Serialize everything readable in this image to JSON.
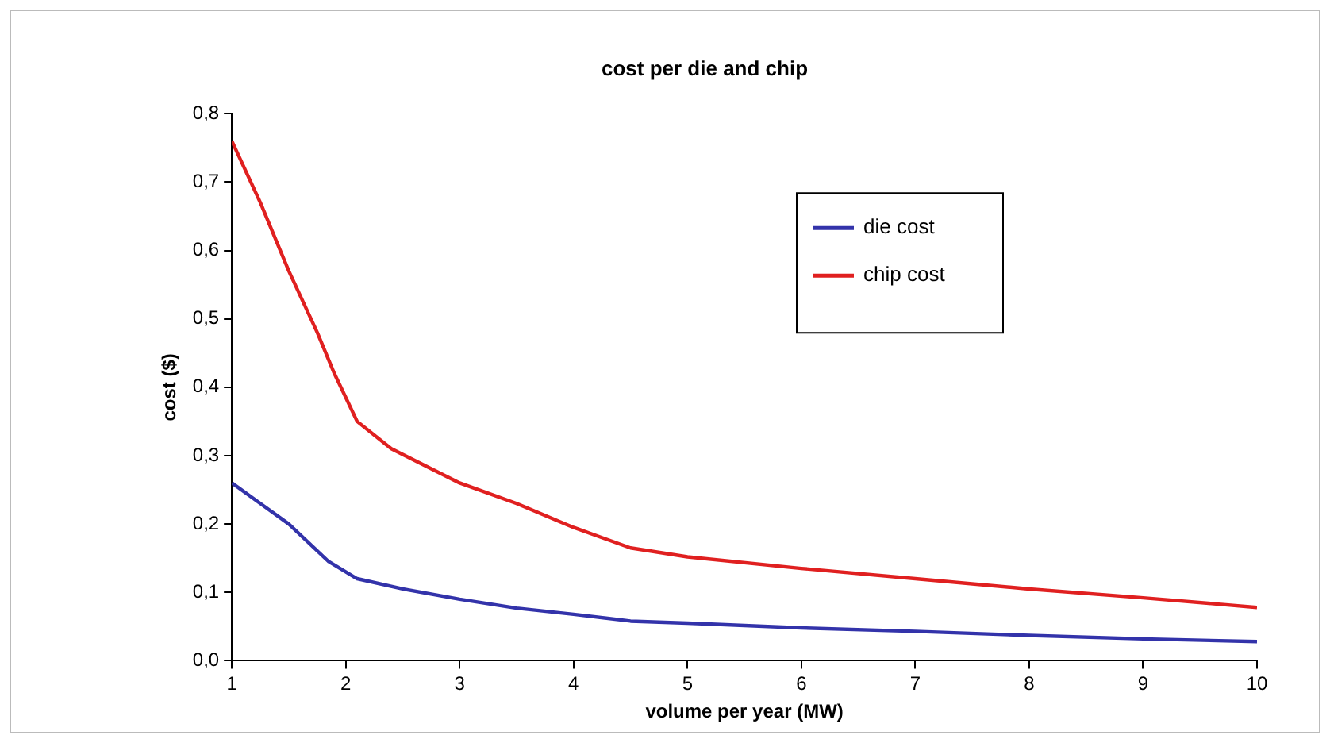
{
  "chart_data": {
    "type": "line",
    "title": "cost per die and chip",
    "xlabel": "volume per year (MW)",
    "ylabel": "cost ($)",
    "xlim": [
      1,
      10
    ],
    "xticks": [
      1,
      2,
      3,
      4,
      5,
      6,
      7,
      8,
      9,
      10
    ],
    "ylim": [
      0,
      0.8
    ],
    "yticks": [
      {
        "value": 0,
        "label": "0,0"
      },
      {
        "value": 0.1,
        "label": "0,1"
      },
      {
        "value": 0.2,
        "label": "0,2"
      },
      {
        "value": 0.3,
        "label": "0,3"
      },
      {
        "value": 0.4,
        "label": "0,4"
      },
      {
        "value": 0.5,
        "label": "0,5"
      },
      {
        "value": 0.6,
        "label": "0,6"
      },
      {
        "value": 0.7,
        "label": "0,7"
      },
      {
        "value": 0.8,
        "label": "0,8"
      }
    ],
    "grid": false,
    "legend": "top right",
    "marker": "none",
    "line_style": "solid",
    "series": [
      {
        "name": "die cost",
        "color": "#3333aa",
        "x": [
          1,
          1.25,
          1.5,
          1.85,
          2.1,
          2.5,
          3,
          3.5,
          4,
          4.5,
          5,
          6,
          7,
          8,
          9,
          10
        ],
        "values": [
          0.26,
          0.23,
          0.2,
          0.145,
          0.12,
          0.105,
          0.09,
          0.077,
          0.068,
          0.058,
          0.055,
          0.048,
          0.043,
          0.037,
          0.032,
          0.028
        ]
      },
      {
        "name": "chip cost",
        "color": "#e02020",
        "x": [
          1,
          1.25,
          1.5,
          1.75,
          1.9,
          2.1,
          2.4,
          3,
          3.5,
          4,
          4.5,
          5,
          6,
          7,
          8,
          9,
          10
        ],
        "values": [
          0.76,
          0.67,
          0.57,
          0.48,
          0.42,
          0.35,
          0.31,
          0.26,
          0.23,
          0.195,
          0.165,
          0.152,
          0.135,
          0.12,
          0.105,
          0.092,
          0.078
        ]
      }
    ]
  }
}
